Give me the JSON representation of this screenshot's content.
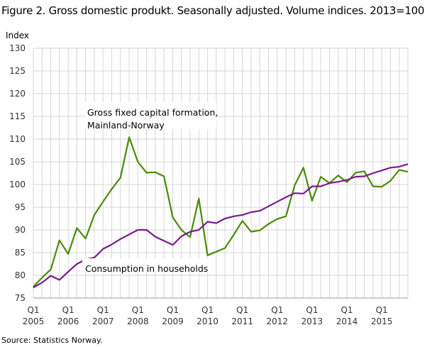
{
  "chart_data": {
    "type": "line",
    "title": "Figure 2. Gross domestic produkt. Seasonally adjusted. Volume indices. 2013=100",
    "ylabel": "Index",
    "xlabel": "",
    "ylim": [
      75,
      130
    ],
    "yticks": [
      75,
      80,
      85,
      90,
      95,
      100,
      105,
      110,
      115,
      120,
      125,
      130
    ],
    "grid": true,
    "x_start": "2005Q1",
    "x_end": "2015Q4",
    "xtick_labels": [
      {
        "q": "Q1",
        "year": "2005"
      },
      {
        "q": "Q1",
        "year": "2006"
      },
      {
        "q": "Q1",
        "year": "2007"
      },
      {
        "q": "Q1",
        "year": "2008"
      },
      {
        "q": "Q1",
        "year": "2009"
      },
      {
        "q": "Q1",
        "year": "2010"
      },
      {
        "q": "Q1",
        "year": "2011"
      },
      {
        "q": "Q1",
        "year": "2012"
      },
      {
        "q": "Q1",
        "year": "2013"
      },
      {
        "q": "Q1",
        "year": "2014"
      },
      {
        "q": "Q1",
        "year": "2015"
      }
    ],
    "series": [
      {
        "name": "Gross fixed capital formation, Mainland-Norway",
        "label_lines": [
          "Gross fixed capital formation,",
          "Mainland-Norway"
        ],
        "color": "#4a8a0b",
        "values": [
          77.5,
          79.5,
          81.3,
          87.7,
          84.7,
          90.4,
          88.1,
          93.3,
          96.2,
          99.0,
          101.5,
          110.4,
          105.0,
          102.6,
          102.7,
          101.8,
          92.8,
          90.0,
          88.4,
          96.9,
          84.4,
          85.2,
          86.0,
          88.9,
          92.0,
          89.6,
          89.9,
          91.3,
          92.4,
          93.0,
          99.8,
          103.7,
          96.4,
          101.7,
          100.3,
          102.0,
          100.5,
          102.6,
          102.9,
          99.6,
          99.5,
          100.8,
          103.2,
          102.8
        ]
      },
      {
        "name": "Consumption in households",
        "label_lines": [
          "Consumption in households"
        ],
        "color": "#7b1a8f",
        "values": [
          77.3,
          78.4,
          79.9,
          79.0,
          80.8,
          82.5,
          83.5,
          83.9,
          85.8,
          86.8,
          88.0,
          89.0,
          90.0,
          90.0,
          88.5,
          87.6,
          86.7,
          88.6,
          89.6,
          90.0,
          91.8,
          91.5,
          92.5,
          93.0,
          93.3,
          93.9,
          94.2,
          95.2,
          96.2,
          97.2,
          98.1,
          98.0,
          99.6,
          99.6,
          100.3,
          100.6,
          101.0,
          101.7,
          101.8,
          102.5,
          103.1,
          103.7,
          103.9,
          104.5
        ]
      }
    ]
  },
  "source": "Source: Statistics Norway."
}
